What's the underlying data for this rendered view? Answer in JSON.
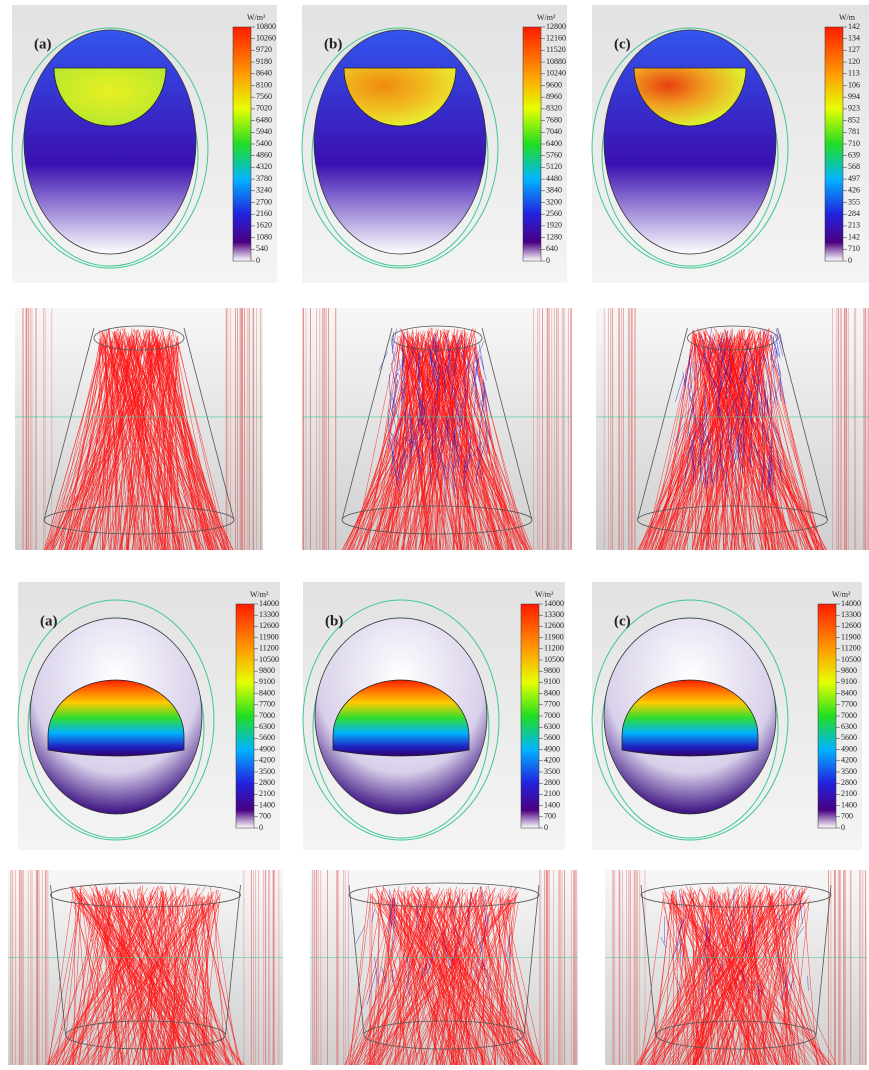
{
  "panels": [
    {
      "label": "(a)",
      "unit": "W/m²",
      "ticks": [
        "10800",
        "10260",
        "9720",
        "9180",
        "8640",
        "8100",
        "7560",
        "7020",
        "6480",
        "5940",
        "5400",
        "4860",
        "4320",
        "3780",
        "3240",
        "2700",
        "2160",
        "1620",
        "1080",
        "540",
        "0"
      ]
    },
    {
      "label": "(b)",
      "unit": "W/m²",
      "ticks": [
        "12800",
        "12160",
        "11520",
        "10880",
        "10240",
        "9600",
        "8960",
        "8320",
        "7680",
        "7040",
        "6400",
        "5760",
        "5120",
        "4480",
        "3840",
        "3200",
        "2560",
        "1920",
        "1280",
        "640",
        "0"
      ]
    },
    {
      "label": "(c)",
      "unit": "W/m",
      "ticks": [
        "142",
        "134",
        "127",
        "120",
        "113",
        "106",
        "994",
        "923",
        "852",
        "781",
        "710",
        "639",
        "568",
        "497",
        "426",
        "355",
        "284",
        "213",
        "142",
        "710",
        "0"
      ]
    },
    {
      "label": "(a)",
      "unit": "W/m²",
      "ticks": [
        "14000",
        "13300",
        "12600",
        "11900",
        "11200",
        "10500",
        "9800",
        "9100",
        "8400",
        "7700",
        "7000",
        "6300",
        "5600",
        "4900",
        "4200",
        "3500",
        "2800",
        "2100",
        "1400",
        "700",
        "0"
      ]
    },
    {
      "label": "(b)",
      "unit": "W/m²",
      "ticks": [
        "14000",
        "13300",
        "12600",
        "11900",
        "11200",
        "10500",
        "9800",
        "9100",
        "8400",
        "7700",
        "7000",
        "6300",
        "5600",
        "4900",
        "4200",
        "3500",
        "2800",
        "2100",
        "1400",
        "700",
        "0"
      ]
    },
    {
      "label": "(c)",
      "unit": "W/m²",
      "ticks": [
        "14000",
        "13300",
        "12600",
        "11900",
        "11200",
        "10500",
        "9800",
        "9100",
        "8400",
        "7700",
        "7000",
        "6300",
        "5600",
        "4900",
        "4200",
        "3500",
        "2800",
        "2100",
        "1400",
        "700",
        "0"
      ]
    }
  ]
}
